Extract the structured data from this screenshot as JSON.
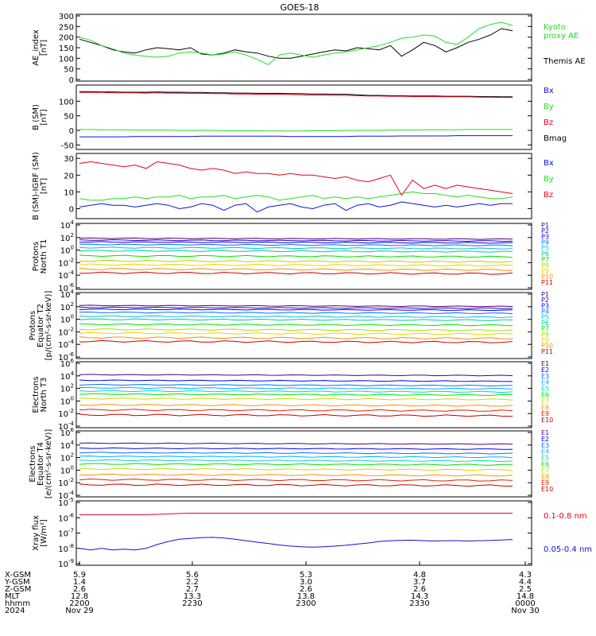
{
  "title": "GOES-18",
  "colors": {
    "black": "#000000",
    "red": "#e8001c",
    "green": "#22dd22",
    "blue": "#1010dd",
    "darkred": "#cc0000",
    "p_colors": [
      "#4b0080",
      "#3000c8",
      "#0000ff",
      "#0070ff",
      "#00c0e0",
      "#00c8a0",
      "#00e000",
      "#a0e000",
      "#f0d000",
      "#ff8c00",
      "#cc0000"
    ],
    "e_colors": [
      "#4b0080",
      "#0000ff",
      "#0070ff",
      "#00b0ff",
      "#00d8c0",
      "#00e000",
      "#c0e000",
      "#ff9000",
      "#e02000",
      "#c00000"
    ]
  },
  "chart_data": [
    {
      "type": "line",
      "panel": "ae",
      "ylabel": [
        "AE_index",
        "[nT]"
      ],
      "ylim": [
        0,
        300
      ],
      "ticks": [
        "0",
        "50",
        "100",
        "150",
        "200",
        "250",
        "300"
      ],
      "tick_values": [
        0,
        50,
        100,
        150,
        200,
        250,
        300
      ],
      "legend": [
        {
          "text": "Kyoto",
          "color": "green"
        },
        {
          "text": "proxy AE",
          "color": "green"
        },
        {
          "text": "Themis AE",
          "color": "black"
        }
      ],
      "series": [
        {
          "name": "Themis AE",
          "color": "black",
          "y": [
            190,
            175,
            160,
            140,
            130,
            125,
            140,
            150,
            145,
            140,
            150,
            120,
            115,
            125,
            140,
            130,
            125,
            110,
            100,
            100,
            110,
            120,
            130,
            140,
            135,
            150,
            145,
            140,
            160,
            110,
            140,
            175,
            160,
            130,
            150,
            175,
            190,
            210,
            240,
            230
          ]
        },
        {
          "name": "Kyoto proxy AE",
          "color": "green",
          "y": [
            200,
            185,
            160,
            145,
            125,
            115,
            110,
            105,
            110,
            125,
            130,
            125,
            115,
            120,
            130,
            115,
            95,
            70,
            115,
            125,
            115,
            105,
            115,
            125,
            130,
            140,
            150,
            160,
            175,
            195,
            200,
            210,
            205,
            175,
            165,
            200,
            240,
            260,
            270,
            255
          ]
        }
      ]
    },
    {
      "type": "line",
      "panel": "b",
      "ylabel": [
        "B (SM)",
        "[nT]"
      ],
      "ylim": [
        -60,
        150
      ],
      "ticks": [
        "-50",
        "0",
        "50",
        "100"
      ],
      "tick_values": [
        -50,
        0,
        50,
        100
      ],
      "legend": [
        {
          "text": "Bx",
          "color": "blue"
        },
        {
          "text": "By",
          "color": "green"
        },
        {
          "text": "Bz",
          "color": "red"
        },
        {
          "text": "Bmag",
          "color": "black"
        }
      ],
      "series": [
        {
          "name": "Bmag",
          "color": "black",
          "y": [
            133,
            133,
            132,
            132,
            131,
            131,
            131,
            132,
            131,
            131,
            130,
            130,
            129,
            129,
            128,
            128,
            127,
            127,
            127,
            126,
            126,
            125,
            125,
            124,
            124,
            122,
            120,
            120,
            119,
            119,
            118,
            118,
            118,
            117,
            117,
            117,
            116,
            116,
            115,
            115
          ]
        },
        {
          "name": "Bz",
          "color": "red",
          "y": [
            130,
            130,
            130,
            129,
            129,
            129,
            128,
            129,
            128,
            128,
            127,
            127,
            126,
            126,
            125,
            125,
            124,
            124,
            124,
            123,
            122,
            121,
            121,
            120,
            120,
            119,
            118,
            118,
            117,
            117,
            116,
            116,
            116,
            115,
            115,
            115,
            114,
            114,
            113,
            113
          ]
        },
        {
          "name": "By",
          "color": "green",
          "y": [
            3,
            3,
            2,
            2,
            2,
            1,
            1,
            1,
            1,
            0,
            0,
            0,
            0,
            -1,
            -1,
            -1,
            -1,
            -2,
            -2,
            -2,
            -2,
            -1,
            -1,
            -1,
            0,
            0,
            0,
            0,
            1,
            1,
            1,
            2,
            2,
            2,
            2,
            3,
            3,
            3,
            3,
            3
          ]
        },
        {
          "name": "Bx",
          "color": "blue",
          "y": [
            -22,
            -22,
            -22,
            -22,
            -22,
            -21,
            -21,
            -21,
            -21,
            -21,
            -21,
            -20,
            -20,
            -20,
            -20,
            -20,
            -20,
            -20,
            -20,
            -21,
            -21,
            -21,
            -21,
            -21,
            -21,
            -20,
            -20,
            -20,
            -20,
            -19,
            -19,
            -19,
            -19,
            -19,
            -18,
            -18,
            -18,
            -18,
            -18,
            -18
          ]
        }
      ]
    },
    {
      "type": "line",
      "panel": "bd",
      "ylabel": [
        "B (SM)-IGRF (SM)",
        "[nT]"
      ],
      "ylim": [
        -5,
        32
      ],
      "ticks": [
        "0",
        "10",
        "20",
        "30"
      ],
      "tick_values": [
        0,
        10,
        20,
        30
      ],
      "legend": [
        {
          "text": "Bx",
          "color": "blue"
        },
        {
          "text": "By",
          "color": "green"
        },
        {
          "text": "Bz",
          "color": "red"
        }
      ],
      "series": [
        {
          "name": "Bz",
          "color": "red",
          "y": [
            27,
            28,
            27,
            26,
            25,
            26,
            24,
            28,
            27,
            26,
            24,
            23,
            24,
            23,
            21,
            22,
            21,
            21,
            20,
            21,
            20,
            20,
            19,
            18,
            19,
            17,
            16,
            18,
            20,
            8,
            17,
            12,
            14,
            12,
            14,
            13,
            12,
            11,
            10,
            9
          ]
        },
        {
          "name": "By",
          "color": "green",
          "y": [
            6,
            5,
            5,
            6,
            6,
            7,
            6,
            7,
            7,
            8,
            6,
            7,
            7,
            8,
            6,
            7,
            8,
            7,
            5,
            6,
            7,
            8,
            6,
            7,
            6,
            7,
            6,
            7,
            8,
            9,
            10,
            9,
            9,
            8,
            7,
            8,
            7,
            6,
            6,
            7
          ]
        },
        {
          "name": "Bx",
          "color": "blue",
          "y": [
            1,
            2,
            3,
            2,
            2,
            1,
            2,
            3,
            2,
            0,
            1,
            3,
            2,
            -1,
            2,
            3,
            -2,
            1,
            2,
            3,
            1,
            0,
            2,
            3,
            -1,
            2,
            3,
            1,
            2,
            4,
            3,
            2,
            1,
            2,
            1,
            2,
            3,
            2,
            3,
            3
          ]
        }
      ]
    },
    {
      "type": "line",
      "panel": "pn",
      "log_scale": true,
      "ylabel": [
        "Protons",
        "North T1"
      ],
      "ylim_exp": [
        -6,
        4
      ],
      "tick_exps": [
        -6,
        -4,
        -2,
        0,
        2,
        4
      ],
      "legend_labels": [
        "P1",
        "P2",
        "P3",
        "P4",
        "P5",
        "P6",
        "P7",
        "P8",
        "P9",
        "P10",
        "P11"
      ],
      "levels": [
        1.9,
        1.6,
        1.3,
        0.9,
        0.4,
        -0.1,
        -0.9,
        -1.7,
        -2.3,
        -3.0,
        -3.6
      ]
    },
    {
      "type": "line",
      "panel": "pe",
      "log_scale": true,
      "ylabel": [
        "Protons",
        "Equator T2",
        "[p/(cm²-s-sr-keV)]"
      ],
      "ylim_exp": [
        -6,
        4
      ],
      "tick_exps": [
        -6,
        -4,
        -2,
        0,
        2,
        4
      ],
      "legend_labels": [
        "P1",
        "P2",
        "P3",
        "P4",
        "P5",
        "P6",
        "P7",
        "P8",
        "P9",
        "P10",
        "P11"
      ],
      "levels": [
        2.2,
        1.9,
        1.6,
        1.1,
        0.5,
        0.0,
        -0.8,
        -1.6,
        -2.2,
        -2.9,
        -3.5
      ]
    },
    {
      "type": "line",
      "panel": "en",
      "log_scale": true,
      "ylabel": [
        "Electrons",
        "North T3"
      ],
      "ylim_exp": [
        -4,
        6
      ],
      "tick_exps": [
        -4,
        -2,
        0,
        2,
        4,
        6
      ],
      "legend_labels": [
        "E1",
        "E2",
        "E3",
        "E4",
        "E5",
        "E6",
        "E7",
        "E8",
        "E9",
        "E10"
      ],
      "levels": [
        4.2,
        3.3,
        2.6,
        2.1,
        1.6,
        1.1,
        0.4,
        -0.6,
        -1.4,
        -2.2
      ]
    },
    {
      "type": "line",
      "panel": "ee",
      "log_scale": true,
      "ylabel": [
        "Electrons",
        "Equator T4",
        "[e/(cm²-s-sr-keV)]"
      ],
      "ylim_exp": [
        -4,
        6
      ],
      "tick_exps": [
        -4,
        -2,
        0,
        2,
        4,
        6
      ],
      "legend_labels": [
        "E1",
        "E2",
        "E3",
        "E4",
        "E5",
        "E6",
        "E7",
        "E8",
        "E9",
        "E10"
      ],
      "levels": [
        4.3,
        3.5,
        2.8,
        2.2,
        1.6,
        1.0,
        0.2,
        -0.7,
        -1.5,
        -2.3
      ]
    },
    {
      "type": "line",
      "panel": "xr",
      "log_scale": true,
      "ylabel": [
        "Xray flux",
        "[W/m²]"
      ],
      "ylim_exp": [
        -9,
        -5
      ],
      "tick_exps": [
        -9,
        -8,
        -7,
        -6,
        -5
      ],
      "legend": [
        {
          "text": "0.1-0.8 nm",
          "color": "red"
        },
        {
          "text": "0.05-0.4 nm",
          "color": "blue"
        }
      ],
      "series": [
        {
          "name": "0.1-0.8 nm",
          "color": "red",
          "y": [
            -5.8,
            -5.8,
            -5.8,
            -5.8,
            -5.8,
            -5.8,
            -5.8,
            -5.78,
            -5.75,
            -5.72,
            -5.7,
            -5.7,
            -5.7,
            -5.7,
            -5.7,
            -5.7,
            -5.7,
            -5.7,
            -5.7,
            -5.7,
            -5.7,
            -5.7,
            -5.7,
            -5.7,
            -5.7,
            -5.7,
            -5.7,
            -5.7,
            -5.7,
            -5.7,
            -5.7,
            -5.7,
            -5.7,
            -5.7,
            -5.7,
            -5.7,
            -5.7,
            -5.7,
            -5.7,
            -5.7
          ]
        },
        {
          "name": "0.05-0.4 nm",
          "color": "blue",
          "y": [
            -8.0,
            -8.1,
            -8.0,
            -8.1,
            -8.05,
            -8.1,
            -8.0,
            -7.75,
            -7.55,
            -7.4,
            -7.35,
            -7.3,
            -7.28,
            -7.32,
            -7.4,
            -7.5,
            -7.6,
            -7.68,
            -7.78,
            -7.85,
            -7.9,
            -7.92,
            -7.9,
            -7.85,
            -7.8,
            -7.72,
            -7.65,
            -7.55,
            -7.5,
            -7.48,
            -7.47,
            -7.5,
            -7.52,
            -7.5,
            -7.5,
            -7.52,
            -7.5,
            -7.48,
            -7.45,
            -7.42
          ]
        }
      ]
    }
  ],
  "xaxis": {
    "row_labels": [
      "X-GSM",
      "Y-GSM",
      "Z-GSM",
      "MLT",
      "hhmm",
      "2024"
    ],
    "columns": [
      [
        "5.9",
        "1.4",
        "2.6",
        "12.8",
        "2200",
        "Nov 29"
      ],
      [
        "5.6",
        "2.2",
        "2.7",
        "13.3",
        "2230",
        ""
      ],
      [
        "5.3",
        "3.0",
        "2.6",
        "13.8",
        "2300",
        ""
      ],
      [
        "4.8",
        "3.7",
        "2.6",
        "14.3",
        "2330",
        ""
      ],
      [
        "4.3",
        "4.4",
        "2.5",
        "14.8",
        "0000",
        "Nov 30"
      ]
    ]
  }
}
